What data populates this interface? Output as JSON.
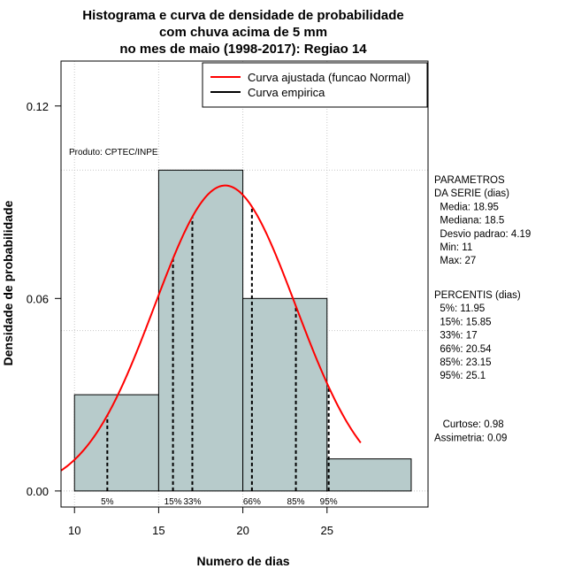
{
  "chart_data": {
    "type": "histogram",
    "title_lines": [
      "Histograma e curva de densidade de probabilidade",
      "com chuva acima de 5 mm",
      "no mes de maio (1998-2017): Regiao 14"
    ],
    "xlabel": "Numero de dias",
    "ylabel": "Densidade de probabilidade",
    "xlim": [
      9.2,
      31
    ],
    "ylim": [
      -0.005,
      0.134
    ],
    "xticks": [
      10,
      15,
      20,
      25
    ],
    "yticks": [
      0.0,
      0.06,
      0.12
    ],
    "ytick_labels": [
      "0.00",
      "0.06",
      "0.12"
    ],
    "grid": true,
    "bins": [
      {
        "x0": 10,
        "x1": 15,
        "density": 0.03
      },
      {
        "x0": 15,
        "x1": 20,
        "density": 0.1
      },
      {
        "x0": 20,
        "x1": 25,
        "density": 0.06
      },
      {
        "x0": 25,
        "x1": 30,
        "density": 0.01
      }
    ],
    "bar_color": "#b7cbcb",
    "normal_curve": {
      "mean": 18.95,
      "sd": 4.19,
      "x_from": 9.2,
      "x_to": 27,
      "color": "#ff0000"
    },
    "percentiles": [
      {
        "label": "5%",
        "x": 11.95
      },
      {
        "label": "15%",
        "x": 15.85
      },
      {
        "label": "33%",
        "x": 17
      },
      {
        "label": "66%",
        "x": 20.54
      },
      {
        "label": "85%",
        "x": 23.15
      },
      {
        "label": "95%",
        "x": 25.1
      }
    ],
    "legend": {
      "position": "top-right",
      "entries": [
        {
          "label": "Curva ajustada (funcao Normal)",
          "color": "#ff0000"
        },
        {
          "label": "Curva empirica",
          "color": "#000000"
        }
      ]
    },
    "annotation": "Produto: CPTEC/INPE",
    "params_block": [
      "PARAMETROS",
      "DA SERIE (dias)",
      "  Media: 18.95",
      "  Mediana: 18.5",
      "  Desvio padrao: 4.19",
      "  Min: 11",
      "  Max: 27"
    ],
    "percentis_block": [
      "PERCENTIS (dias)",
      "  5%: 11.95",
      "  15%: 15.85",
      "  33%: 17",
      "  66%: 20.54",
      "  85%: 23.15",
      "  95%: 25.1"
    ],
    "stats_block": [
      "   Curtose: 0.98",
      "Assimetria: 0.09"
    ]
  }
}
